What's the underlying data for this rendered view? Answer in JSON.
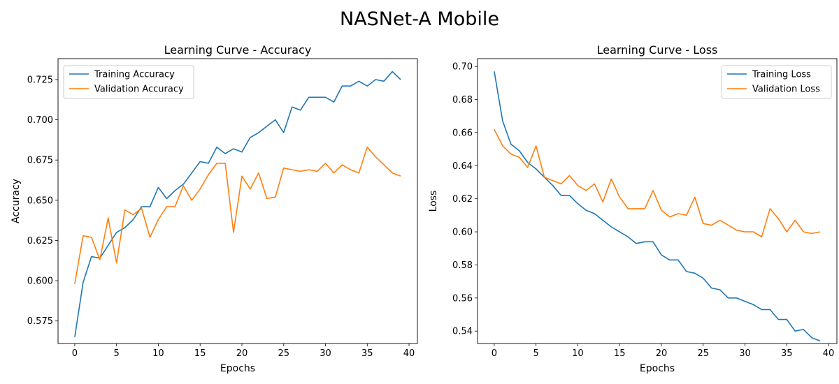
{
  "figure": {
    "title": "NASNet-A Mobile"
  },
  "colors": {
    "series_1": "#1f77b4",
    "series_2": "#ff7f0e",
    "axes": "#000000",
    "legend_border": "#cccccc"
  },
  "chart_data": [
    {
      "type": "line",
      "title": "Learning Curve - Accuracy",
      "xlabel": "Epochs",
      "ylabel": "Accuracy",
      "xlim": [
        -2,
        41
      ],
      "ylim": [
        0.561,
        0.738
      ],
      "xticks": [
        0,
        5,
        10,
        15,
        20,
        25,
        30,
        35,
        40
      ],
      "yticks": [
        0.575,
        0.6,
        0.625,
        0.65,
        0.675,
        0.7,
        0.725
      ],
      "ytick_labels": [
        "0.575",
        "0.600",
        "0.625",
        "0.650",
        "0.675",
        "0.700",
        "0.725"
      ],
      "legend_position": "upper left",
      "x": [
        0,
        1,
        2,
        3,
        4,
        5,
        6,
        7,
        8,
        9,
        10,
        11,
        12,
        13,
        14,
        15,
        16,
        17,
        18,
        19,
        20,
        21,
        22,
        23,
        24,
        25,
        26,
        27,
        28,
        29,
        30,
        31,
        32,
        33,
        34,
        35,
        36,
        37,
        38,
        39
      ],
      "series": [
        {
          "name": "Training Accuracy",
          "color": "#1f77b4",
          "values": [
            0.565,
            0.599,
            0.615,
            0.614,
            0.622,
            0.63,
            0.633,
            0.638,
            0.646,
            0.646,
            0.658,
            0.651,
            0.656,
            0.66,
            0.667,
            0.674,
            0.673,
            0.683,
            0.679,
            0.682,
            0.68,
            0.689,
            0.692,
            0.696,
            0.7,
            0.692,
            0.708,
            0.706,
            0.714,
            0.714,
            0.714,
            0.711,
            0.721,
            0.721,
            0.724,
            0.721,
            0.725,
            0.724,
            0.73,
            0.725
          ]
        },
        {
          "name": "Validation Accuracy",
          "color": "#ff7f0e",
          "values": [
            0.598,
            0.628,
            0.627,
            0.613,
            0.639,
            0.611,
            0.644,
            0.641,
            0.645,
            0.627,
            0.638,
            0.646,
            0.646,
            0.659,
            0.65,
            0.657,
            0.666,
            0.673,
            0.673,
            0.63,
            0.665,
            0.657,
            0.667,
            0.651,
            0.652,
            0.67,
            0.669,
            0.668,
            0.669,
            0.668,
            0.673,
            0.667,
            0.672,
            0.669,
            0.667,
            0.683,
            0.677,
            0.672,
            0.667,
            0.665
          ]
        }
      ]
    },
    {
      "type": "line",
      "title": "Learning Curve - Loss",
      "xlabel": "Epochs",
      "ylabel": "Loss",
      "xlim": [
        -2,
        41
      ],
      "ylim": [
        0.5325,
        0.7047
      ],
      "xticks": [
        0,
        5,
        10,
        15,
        20,
        25,
        30,
        35,
        40
      ],
      "yticks": [
        0.54,
        0.56,
        0.58,
        0.6,
        0.62,
        0.64,
        0.66,
        0.68,
        0.7
      ],
      "ytick_labels": [
        "0.54",
        "0.56",
        "0.58",
        "0.60",
        "0.62",
        "0.64",
        "0.66",
        "0.68",
        "0.70"
      ],
      "legend_position": "upper right",
      "x": [
        0,
        1,
        2,
        3,
        4,
        5,
        6,
        7,
        8,
        9,
        10,
        11,
        12,
        13,
        14,
        15,
        16,
        17,
        18,
        19,
        20,
        21,
        22,
        23,
        24,
        25,
        26,
        27,
        28,
        29,
        30,
        31,
        32,
        33,
        34,
        35,
        36,
        37,
        38,
        39
      ],
      "series": [
        {
          "name": "Training Loss",
          "color": "#1f77b4",
          "values": [
            0.697,
            0.667,
            0.653,
            0.649,
            0.642,
            0.638,
            0.633,
            0.628,
            0.622,
            0.622,
            0.617,
            0.613,
            0.611,
            0.607,
            0.603,
            0.6,
            0.597,
            0.593,
            0.594,
            0.594,
            0.586,
            0.583,
            0.583,
            0.576,
            0.575,
            0.572,
            0.566,
            0.565,
            0.56,
            0.56,
            0.558,
            0.556,
            0.553,
            0.553,
            0.547,
            0.547,
            0.54,
            0.541,
            0.536,
            0.534
          ]
        },
        {
          "name": "Validation Loss",
          "color": "#ff7f0e",
          "values": [
            0.662,
            0.652,
            0.647,
            0.645,
            0.639,
            0.652,
            0.633,
            0.631,
            0.629,
            0.634,
            0.628,
            0.625,
            0.629,
            0.618,
            0.632,
            0.621,
            0.614,
            0.614,
            0.614,
            0.625,
            0.613,
            0.609,
            0.611,
            0.61,
            0.621,
            0.605,
            0.604,
            0.607,
            0.604,
            0.601,
            0.6,
            0.6,
            0.597,
            0.614,
            0.608,
            0.6,
            0.607,
            0.6,
            0.599,
            0.6
          ]
        }
      ]
    }
  ]
}
